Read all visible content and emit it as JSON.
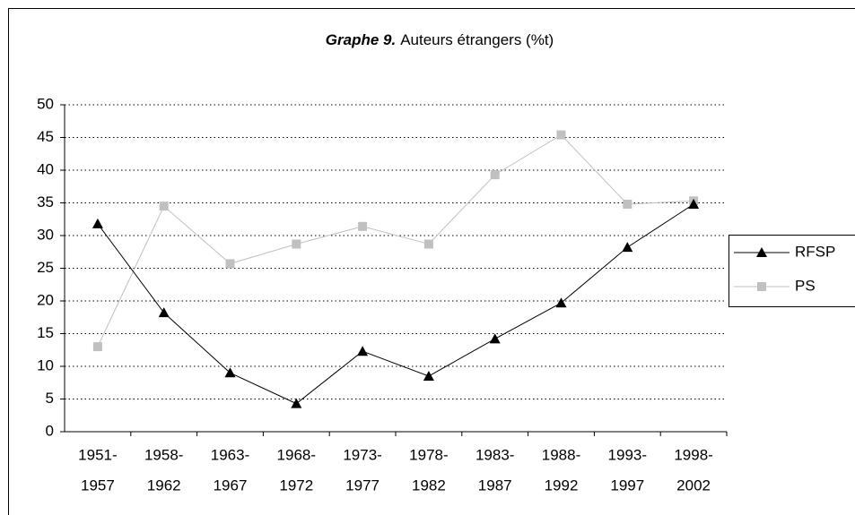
{
  "chart_data": {
    "type": "line",
    "title_label": "Graphe 9.",
    "title": "Auteurs étrangers (%t)",
    "categories": [
      [
        "1951-",
        "1957"
      ],
      [
        "1958-",
        "1962"
      ],
      [
        "1963-",
        "1967"
      ],
      [
        "1968-",
        "1972"
      ],
      [
        "1973-",
        "1977"
      ],
      [
        "1978-",
        "1982"
      ],
      [
        "1983-",
        "1987"
      ],
      [
        "1988-",
        "1992"
      ],
      [
        "1993-",
        "1997"
      ],
      [
        "1998-",
        "2002"
      ]
    ],
    "series": [
      {
        "name": "RFSP",
        "color": "#000000",
        "marker": "triangle",
        "values": [
          31.8,
          18.2,
          9,
          4.3,
          12.3,
          8.5,
          14.2,
          19.7,
          28.2,
          34.8
        ]
      },
      {
        "name": "PS",
        "color": "#c0c0c0",
        "marker": "square",
        "values": [
          13,
          34.5,
          25.7,
          28.7,
          31.4,
          28.7,
          39.3,
          45.4,
          34.8,
          35.3
        ]
      }
    ],
    "ylim": [
      0,
      50
    ],
    "yticks": [
      0,
      5,
      10,
      15,
      20,
      25,
      30,
      35,
      40,
      45,
      50
    ],
    "grid": true
  }
}
